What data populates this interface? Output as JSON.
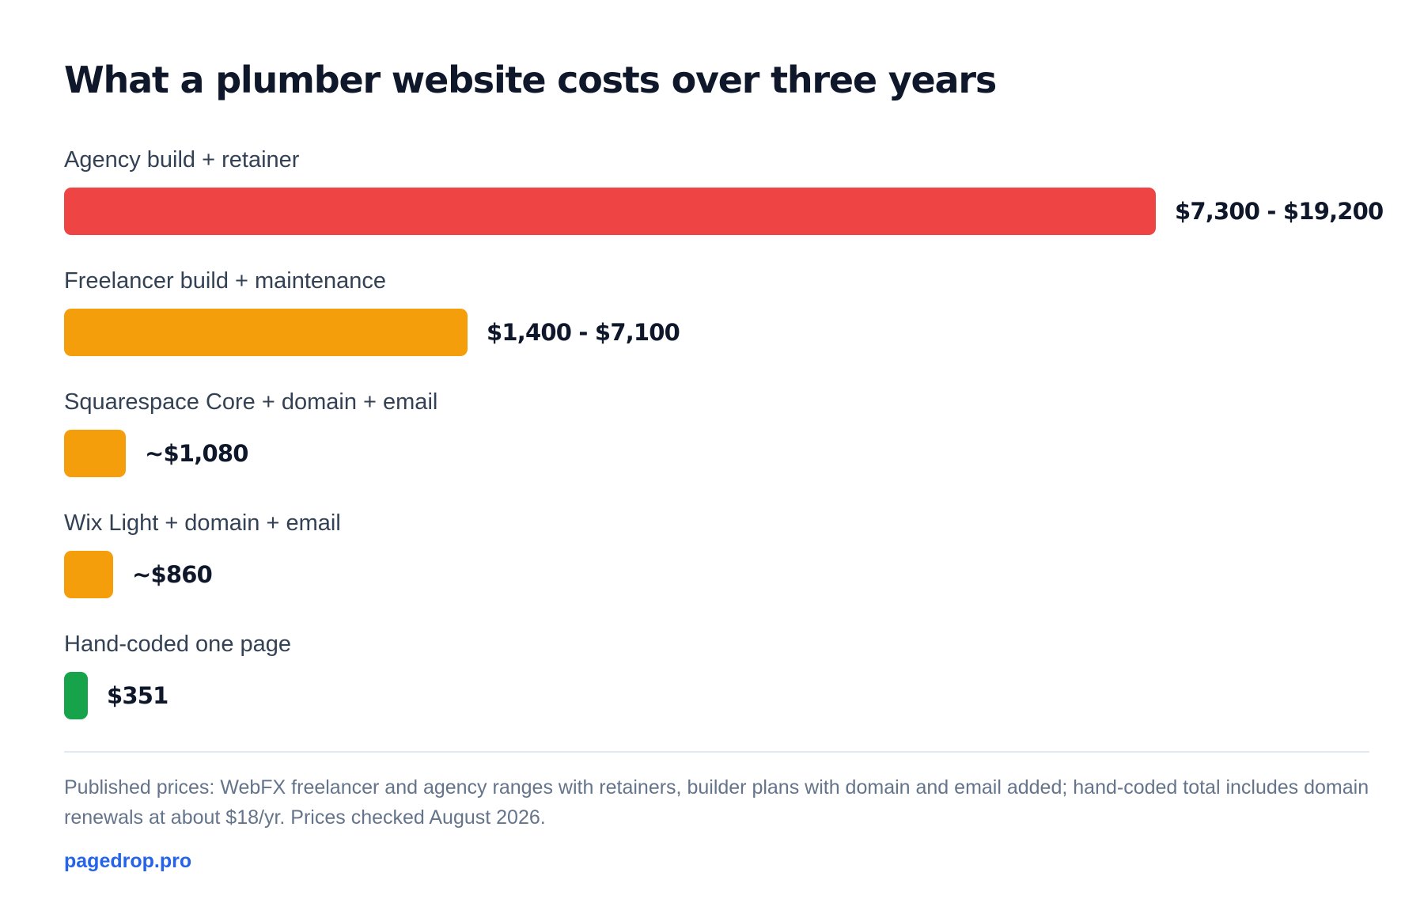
{
  "chart_data": {
    "type": "bar",
    "orientation": "horizontal",
    "title": "What a plumber website costs over three years",
    "categories": [
      "Agency build + retainer",
      "Freelancer build + maintenance",
      "Squarespace Core + domain + email",
      "Wix Light + domain + email",
      "Hand-coded one page"
    ],
    "values": [
      19200,
      7100,
      1080,
      860,
      351
    ],
    "value_labels": [
      "$7,300 - $19,200",
      "$1,400 - $7,100",
      "~$1,080",
      "~$860",
      "$351"
    ],
    "colors": [
      "#ef4444",
      "#f59e0b",
      "#f59e0b",
      "#f59e0b",
      "#16a34a"
    ],
    "xlim": [
      0,
      19200
    ],
    "grid": false,
    "legend": "none"
  },
  "footer": {
    "note": "Published prices: WebFX freelancer and agency ranges with retainers, builder plans with domain and email added; hand-coded total includes domain renewals at about $18/yr. Prices checked August 2026.",
    "source": "pagedrop.pro"
  }
}
